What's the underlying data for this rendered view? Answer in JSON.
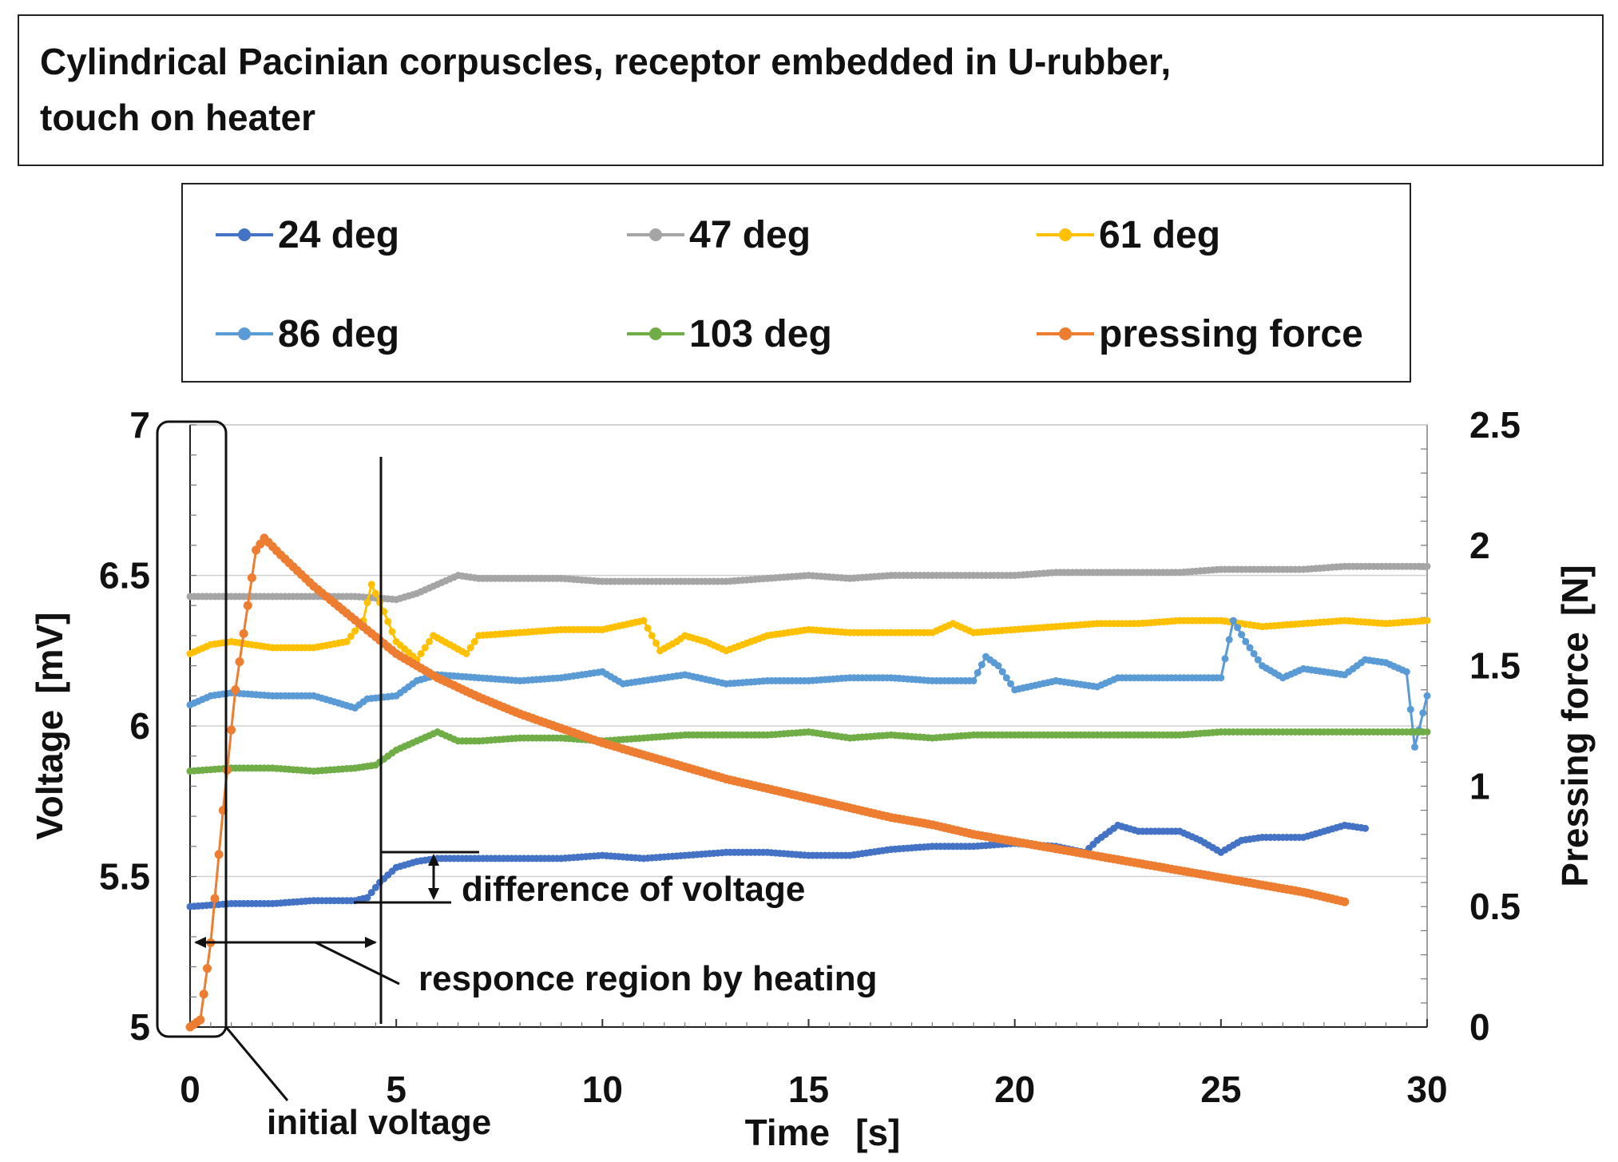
{
  "title": {
    "line1": "Cylindrical Pacinian corpuscles, receptor embedded in U-rubber,",
    "line2": "touch on heater"
  },
  "chart_data": {
    "type": "line",
    "x": {
      "label": "Time",
      "unit": "[s]",
      "range": [
        0,
        30
      ],
      "ticks": [
        0,
        5,
        10,
        15,
        20,
        25,
        30
      ]
    },
    "y_left": {
      "label": "Voltage",
      "unit": "[mV]",
      "range": [
        5,
        7
      ],
      "ticks": [
        5,
        5.5,
        6,
        6.5,
        7
      ]
    },
    "y_right": {
      "label": "Pressing force",
      "unit": "[N]",
      "range": [
        0,
        2.5
      ],
      "ticks": [
        0,
        0.5,
        1,
        1.5,
        2,
        2.5
      ]
    },
    "grid": "horizontal",
    "legend_position": "top",
    "series": [
      {
        "name": "24 deg",
        "color": "#4472c4",
        "axis": "left",
        "points": [
          [
            0,
            5.4
          ],
          [
            1,
            5.41
          ],
          [
            2,
            5.41
          ],
          [
            3,
            5.42
          ],
          [
            4,
            5.42
          ],
          [
            4.3,
            5.43
          ],
          [
            4.6,
            5.48
          ],
          [
            5,
            5.53
          ],
          [
            5.5,
            5.55
          ],
          [
            6,
            5.56
          ],
          [
            7,
            5.56
          ],
          [
            8,
            5.56
          ],
          [
            9,
            5.56
          ],
          [
            10,
            5.57
          ],
          [
            11,
            5.56
          ],
          [
            12,
            5.57
          ],
          [
            13,
            5.58
          ],
          [
            14,
            5.58
          ],
          [
            15,
            5.57
          ],
          [
            16,
            5.57
          ],
          [
            17,
            5.59
          ],
          [
            18,
            5.6
          ],
          [
            19,
            5.6
          ],
          [
            20,
            5.61
          ],
          [
            21,
            5.6
          ],
          [
            21.7,
            5.58
          ],
          [
            22,
            5.62
          ],
          [
            22.5,
            5.67
          ],
          [
            23,
            5.65
          ],
          [
            24,
            5.65
          ],
          [
            24.5,
            5.62
          ],
          [
            25,
            5.58
          ],
          [
            25.5,
            5.62
          ],
          [
            26,
            5.63
          ],
          [
            27,
            5.63
          ],
          [
            28,
            5.67
          ],
          [
            28.5,
            5.66
          ]
        ]
      },
      {
        "name": "47 deg",
        "color": "#a5a5a5",
        "axis": "left",
        "points": [
          [
            0,
            6.43
          ],
          [
            1,
            6.43
          ],
          [
            2,
            6.43
          ],
          [
            3,
            6.43
          ],
          [
            4,
            6.43
          ],
          [
            5,
            6.42
          ],
          [
            5.5,
            6.44
          ],
          [
            6,
            6.47
          ],
          [
            6.5,
            6.5
          ],
          [
            7,
            6.49
          ],
          [
            8,
            6.49
          ],
          [
            9,
            6.49
          ],
          [
            10,
            6.48
          ],
          [
            11,
            6.48
          ],
          [
            12,
            6.48
          ],
          [
            13,
            6.48
          ],
          [
            14,
            6.49
          ],
          [
            15,
            6.5
          ],
          [
            16,
            6.49
          ],
          [
            17,
            6.5
          ],
          [
            18,
            6.5
          ],
          [
            19,
            6.5
          ],
          [
            20,
            6.5
          ],
          [
            21,
            6.51
          ],
          [
            22,
            6.51
          ],
          [
            23,
            6.51
          ],
          [
            24,
            6.51
          ],
          [
            25,
            6.52
          ],
          [
            26,
            6.52
          ],
          [
            27,
            6.52
          ],
          [
            28,
            6.53
          ],
          [
            29,
            6.53
          ],
          [
            30,
            6.53
          ]
        ]
      },
      {
        "name": "61 deg",
        "color": "#ffc000",
        "axis": "left",
        "points": [
          [
            0,
            6.24
          ],
          [
            0.5,
            6.27
          ],
          [
            1,
            6.28
          ],
          [
            2,
            6.26
          ],
          [
            3,
            6.26
          ],
          [
            3.8,
            6.28
          ],
          [
            4.2,
            6.35
          ],
          [
            4.4,
            6.47
          ],
          [
            4.7,
            6.38
          ],
          [
            5,
            6.28
          ],
          [
            5.5,
            6.22
          ],
          [
            5.9,
            6.3
          ],
          [
            6.3,
            6.27
          ],
          [
            6.7,
            6.24
          ],
          [
            7,
            6.3
          ],
          [
            8,
            6.31
          ],
          [
            9,
            6.32
          ],
          [
            10,
            6.32
          ],
          [
            11,
            6.35
          ],
          [
            11.4,
            6.25
          ],
          [
            11.8,
            6.28
          ],
          [
            12,
            6.3
          ],
          [
            12.5,
            6.28
          ],
          [
            13,
            6.25
          ],
          [
            14,
            6.3
          ],
          [
            15,
            6.32
          ],
          [
            16,
            6.31
          ],
          [
            17,
            6.31
          ],
          [
            18,
            6.31
          ],
          [
            18.5,
            6.34
          ],
          [
            19,
            6.31
          ],
          [
            20,
            6.32
          ],
          [
            21,
            6.33
          ],
          [
            22,
            6.34
          ],
          [
            23,
            6.34
          ],
          [
            24,
            6.35
          ],
          [
            25,
            6.35
          ],
          [
            26,
            6.33
          ],
          [
            27,
            6.34
          ],
          [
            28,
            6.35
          ],
          [
            29,
            6.34
          ],
          [
            30,
            6.35
          ]
        ]
      },
      {
        "name": "86 deg",
        "color": "#5b9bd5",
        "axis": "left",
        "points": [
          [
            0,
            6.07
          ],
          [
            0.5,
            6.1
          ],
          [
            1,
            6.11
          ],
          [
            2,
            6.1
          ],
          [
            3,
            6.1
          ],
          [
            3.5,
            6.08
          ],
          [
            4,
            6.06
          ],
          [
            4.3,
            6.09
          ],
          [
            5,
            6.1
          ],
          [
            5.5,
            6.15
          ],
          [
            6,
            6.17
          ],
          [
            7,
            6.16
          ],
          [
            8,
            6.15
          ],
          [
            9,
            6.16
          ],
          [
            10,
            6.18
          ],
          [
            10.5,
            6.14
          ],
          [
            11,
            6.15
          ],
          [
            12,
            6.17
          ],
          [
            13,
            6.14
          ],
          [
            14,
            6.15
          ],
          [
            15,
            6.15
          ],
          [
            16,
            6.16
          ],
          [
            17,
            6.16
          ],
          [
            18,
            6.15
          ],
          [
            19,
            6.15
          ],
          [
            19.3,
            6.23
          ],
          [
            19.6,
            6.2
          ],
          [
            20,
            6.12
          ],
          [
            21,
            6.15
          ],
          [
            22,
            6.13
          ],
          [
            22.5,
            6.16
          ],
          [
            23,
            6.16
          ],
          [
            24,
            6.16
          ],
          [
            25,
            6.16
          ],
          [
            25.3,
            6.35
          ],
          [
            25.6,
            6.28
          ],
          [
            26,
            6.2
          ],
          [
            26.5,
            6.16
          ],
          [
            27,
            6.19
          ],
          [
            28,
            6.17
          ],
          [
            28.5,
            6.22
          ],
          [
            29,
            6.21
          ],
          [
            29.5,
            6.18
          ],
          [
            29.7,
            5.93
          ],
          [
            30,
            6.1
          ]
        ]
      },
      {
        "name": "103 deg",
        "color": "#70ad47",
        "axis": "left",
        "points": [
          [
            0,
            5.85
          ],
          [
            1,
            5.86
          ],
          [
            2,
            5.86
          ],
          [
            3,
            5.85
          ],
          [
            4,
            5.86
          ],
          [
            4.5,
            5.87
          ],
          [
            5,
            5.92
          ],
          [
            5.5,
            5.95
          ],
          [
            6,
            5.98
          ],
          [
            6.5,
            5.95
          ],
          [
            7,
            5.95
          ],
          [
            8,
            5.96
          ],
          [
            9,
            5.96
          ],
          [
            10,
            5.95
          ],
          [
            11,
            5.96
          ],
          [
            12,
            5.97
          ],
          [
            13,
            5.97
          ],
          [
            14,
            5.97
          ],
          [
            15,
            5.98
          ],
          [
            16,
            5.96
          ],
          [
            17,
            5.97
          ],
          [
            18,
            5.96
          ],
          [
            19,
            5.97
          ],
          [
            20,
            5.97
          ],
          [
            21,
            5.97
          ],
          [
            22,
            5.97
          ],
          [
            23,
            5.97
          ],
          [
            24,
            5.97
          ],
          [
            25,
            5.98
          ],
          [
            26,
            5.98
          ],
          [
            27,
            5.98
          ],
          [
            28,
            5.98
          ],
          [
            29,
            5.98
          ],
          [
            30,
            5.98
          ]
        ]
      },
      {
        "name": "pressing force",
        "color": "#ed7d31",
        "axis": "right",
        "points": [
          [
            0,
            0
          ],
          [
            0.25,
            0.03
          ],
          [
            0.5,
            0.35
          ],
          [
            0.8,
            0.9
          ],
          [
            1.1,
            1.4
          ],
          [
            1.4,
            1.75
          ],
          [
            1.6,
            1.98
          ],
          [
            1.8,
            2.03
          ],
          [
            2.2,
            1.96
          ],
          [
            3,
            1.83
          ],
          [
            4,
            1.69
          ],
          [
            5,
            1.55
          ],
          [
            6,
            1.45
          ],
          [
            7,
            1.37
          ],
          [
            8,
            1.3
          ],
          [
            9,
            1.24
          ],
          [
            10,
            1.18
          ],
          [
            11,
            1.13
          ],
          [
            12,
            1.08
          ],
          [
            13,
            1.03
          ],
          [
            14,
            0.99
          ],
          [
            15,
            0.95
          ],
          [
            16,
            0.91
          ],
          [
            17,
            0.87
          ],
          [
            18,
            0.84
          ],
          [
            19,
            0.8
          ],
          [
            20,
            0.77
          ],
          [
            21,
            0.74
          ],
          [
            22,
            0.71
          ],
          [
            23,
            0.68
          ],
          [
            24,
            0.65
          ],
          [
            25,
            0.62
          ],
          [
            26,
            0.59
          ],
          [
            27,
            0.56
          ],
          [
            28,
            0.52
          ]
        ]
      }
    ],
    "annotations": {
      "diff": "difference of voltage",
      "region": "responce region by heating",
      "initial": "initial voltage"
    }
  }
}
